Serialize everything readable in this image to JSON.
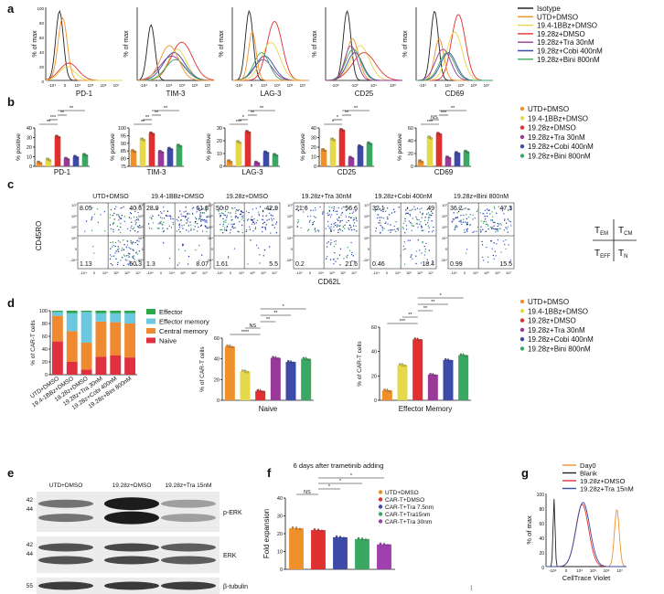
{
  "panels": {
    "a": "a",
    "b": "b",
    "c": "c",
    "d": "d",
    "e": "e",
    "f": "f",
    "g": "g"
  },
  "colors": {
    "isotype": "#222222",
    "utd": "#f0902a",
    "bb": "#e5d84a",
    "z28": "#e03030",
    "tra": "#9a3a98",
    "cobi": "#3d4aa8",
    "bini": "#3aa862"
  },
  "conditions": [
    "UTD+DMSO",
    "19.4-1BBz+DMSO",
    "19.28z+DMSO",
    "19.28z+Tra 30nM",
    "19.28z+Cobi 400nM",
    "19.28z+Bini 800nM"
  ],
  "legend_a": [
    "Isotype",
    "UTD+DMSO",
    "19.4-1BBz+DMSO",
    "19.28z+DMSO",
    "19.28z+Tra 30nM",
    "19.28z+Cobi 400nM",
    "19.28z+Bini 800nM"
  ],
  "panel_a": {
    "ylabel": "% of max",
    "yticks": [
      "100",
      "80",
      "60",
      "40",
      "20",
      "0"
    ],
    "histograms": [
      {
        "marker": "PD-1",
        "xticks": [
          "-10⁴",
          "0",
          "10⁴",
          "10⁵",
          "10⁶",
          "10⁷"
        ]
      },
      {
        "marker": "TIM-3",
        "xticks": [
          "-10⁴",
          "0",
          "10⁴",
          "10⁵",
          "10⁶",
          "10⁷"
        ]
      },
      {
        "marker": "LAG-3",
        "xticks": [
          "-10⁴",
          "0",
          "10⁴",
          "10⁵",
          "10⁶",
          "10⁷"
        ]
      },
      {
        "marker": "CD25",
        "xticks": [
          "-10⁶",
          "-10⁵",
          "10⁴",
          "10⁶"
        ]
      },
      {
        "marker": "CD69",
        "xticks": [
          "-10⁴",
          "0",
          "10⁴",
          "10⁵",
          "10⁶",
          "10⁷"
        ]
      }
    ]
  },
  "chart_data": [
    {
      "type": "bar",
      "panel": "b",
      "title": "PD-1",
      "ylabel": "% positive",
      "ylim": [
        0,
        40
      ],
      "yticks": [
        "0",
        "10",
        "20",
        "30",
        "40"
      ],
      "categories": [
        "UTD+DMSO",
        "19.4-1BBz+DMSO",
        "19.28z+DMSO",
        "19.28z+Tra 30nM",
        "19.28z+Cobi 400nM",
        "19.28z+Bini 800nM"
      ],
      "values": [
        4,
        7,
        31,
        8,
        10,
        12
      ],
      "sig": [
        [
          "**",
          0,
          2
        ],
        [
          "***",
          1,
          2
        ],
        [
          "**",
          2,
          3
        ],
        [
          "**",
          2,
          5
        ]
      ]
    },
    {
      "type": "bar",
      "panel": "b",
      "title": "TIM-3",
      "ylabel": "% positive",
      "ylim": [
        75,
        100
      ],
      "yticks": [
        "75",
        "80",
        "85",
        "90",
        "95",
        "100"
      ],
      "categories": [
        "UTD+DMSO",
        "19.4-1BBz+DMSO",
        "19.28z+DMSO",
        "19.28z+Tra 30nM",
        "19.28z+Cobi 400nM",
        "19.28z+Bini 800nM"
      ],
      "values": [
        85,
        92.5,
        96.5,
        84.5,
        86.5,
        88.5
      ],
      "sig": [
        [
          "**",
          0,
          2
        ],
        [
          "**",
          1,
          2
        ],
        [
          "**",
          2,
          3
        ],
        [
          "**",
          2,
          5
        ]
      ]
    },
    {
      "type": "bar",
      "panel": "b",
      "title": "LAG-3",
      "ylabel": "% positive",
      "ylim": [
        0,
        30
      ],
      "yticks": [
        "0",
        "10",
        "20",
        "30"
      ],
      "categories": [
        "UTD+DMSO",
        "19.4-1BBz+DMSO",
        "19.28z+DMSO",
        "19.28z+Tra 30nM",
        "19.28z+Cobi 400nM",
        "19.28z+Bini 800nM"
      ],
      "values": [
        4,
        19,
        27,
        3,
        11,
        9
      ],
      "sig": [
        [
          "***",
          0,
          2
        ],
        [
          "*",
          1,
          2
        ],
        [
          "**",
          2,
          3
        ],
        [
          "**",
          2,
          5
        ]
      ]
    },
    {
      "type": "bar",
      "panel": "b",
      "title": "CD25",
      "ylabel": "% positive",
      "ylim": [
        0,
        40
      ],
      "yticks": [
        "0",
        "10",
        "20",
        "30",
        "40"
      ],
      "categories": [
        "UTD+DMSO",
        "19.4-1BBz+DMSO",
        "19.28z+DMSO",
        "19.28z+Tra 30nM",
        "19.28z+Cobi 400nM",
        "19.28z+Bini 800nM"
      ],
      "values": [
        17,
        28,
        38,
        9,
        21,
        24
      ],
      "sig": [
        [
          "*",
          0,
          2
        ],
        [
          "*",
          1,
          2
        ],
        [
          "**",
          2,
          3
        ],
        [
          "**",
          2,
          5
        ]
      ]
    },
    {
      "type": "bar",
      "panel": "b",
      "title": "CD69",
      "ylabel": "% positive",
      "ylim": [
        0,
        60
      ],
      "yticks": [
        "0",
        "20",
        "40",
        "60"
      ],
      "categories": [
        "UTD+DMSO",
        "19.4-1BBz+DMSO",
        "19.28z+DMSO",
        "19.28z+Tra 30nM",
        "19.28z+Cobi 400nM",
        "19.28z+Bini 800nM"
      ],
      "values": [
        8,
        45,
        51,
        14,
        21,
        23
      ],
      "sig": [
        [
          "***",
          0,
          2
        ],
        [
          "NS",
          1,
          2
        ],
        [
          "***",
          2,
          3
        ],
        [
          "**",
          2,
          5
        ]
      ]
    },
    {
      "type": "stacked-bar",
      "panel": "d",
      "ylabel": "% of CAR-T cells",
      "ylim": [
        0,
        100
      ],
      "yticks": [
        "0",
        "20",
        "40",
        "60",
        "80",
        "100"
      ],
      "categories": [
        "UTD+DMSO",
        "19.4-1BBz+DMSO",
        "19.28z+DMSO",
        "19.28z+Tra 30nM",
        "19.28z+Cobi 400nM",
        "19.28z+Bini 800nM"
      ],
      "series": [
        {
          "name": "Naive",
          "values": [
            52,
            20,
            8,
            28,
            30,
            27
          ]
        },
        {
          "name": "Central memory",
          "values": [
            40,
            48,
            42,
            55,
            52,
            53
          ]
        },
        {
          "name": "Effector memory",
          "values": [
            6,
            28,
            48,
            13,
            14,
            16
          ]
        },
        {
          "name": "Effector",
          "values": [
            2,
            4,
            2,
            4,
            4,
            4
          ]
        }
      ]
    },
    {
      "type": "bar",
      "panel": "d",
      "title": "Naive",
      "ylabel": "% of CAR-T cells",
      "ylim": [
        0,
        60
      ],
      "yticks": [
        "0",
        "20",
        "40",
        "60"
      ],
      "categories": [
        "UTD+DMSO",
        "19.4-1BBz+DMSO",
        "19.28z+DMSO",
        "19.28z+Tra 30nM",
        "19.28z+Cobi 400nM",
        "19.28z+Bini 800nM"
      ],
      "values": [
        52,
        28,
        9,
        41,
        37,
        40
      ],
      "sig": [
        [
          "****",
          0,
          2
        ],
        [
          "NS",
          1,
          2
        ],
        [
          "**",
          2,
          3
        ],
        [
          "**",
          2,
          4
        ],
        [
          "*",
          2,
          5
        ]
      ]
    },
    {
      "type": "bar",
      "panel": "d",
      "title": "Effector Memory",
      "ylabel": "% of CAR-T cells",
      "ylim": [
        0,
        60
      ],
      "yticks": [
        "0",
        "20",
        "40",
        "60"
      ],
      "categories": [
        "UTD+DMSO",
        "19.4-1BBz+DMSO",
        "19.28z+DMSO",
        "19.28z+Tra 30nM",
        "19.28z+Cobi 400nM",
        "19.28z+Bini 800nM"
      ],
      "values": [
        8,
        29,
        50,
        21,
        33,
        37
      ],
      "sig": [
        [
          "***",
          0,
          2
        ],
        [
          "**",
          1,
          2
        ],
        [
          "**",
          2,
          3
        ],
        [
          "**",
          2,
          4
        ],
        [
          "*",
          2,
          5
        ]
      ]
    },
    {
      "type": "bar",
      "panel": "f",
      "title": "6 days after trametinib adding",
      "ylabel": "Fold expansion",
      "ylim": [
        0,
        40
      ],
      "yticks": [
        "0",
        "10",
        "20",
        "30",
        "40"
      ],
      "categories": [
        "UTD+DMSO",
        "CAR-T+DMSO",
        "CAR-T+Tra 7.5nm",
        "CAR-T+Tra15nm",
        "CAR-T+Tra 30nm"
      ],
      "values": [
        23,
        22,
        18,
        17,
        14
      ],
      "sig": [
        [
          "NS",
          0,
          1
        ],
        [
          "*",
          1,
          2
        ],
        [
          "*",
          1,
          3
        ],
        [
          "*",
          1,
          4
        ]
      ]
    }
  ],
  "panel_b_legend": [
    "UTD+DMSO",
    "19.4-1BBz+DMSO",
    "19.28z+DMSO",
    "19.28z+Tra 30nM",
    "19.28z+Cobi 400nM",
    "19.28z+Bini 800nM"
  ],
  "panel_c": {
    "ylabel": "CD45RO",
    "xlabel": "CD62L",
    "yticks": [
      "10⁷",
      "10⁶",
      "10⁵",
      "10⁴",
      "0",
      "-10⁴"
    ],
    "xticks": [
      "-10⁴",
      "0",
      "10⁴",
      "10⁵",
      "10⁶",
      "10⁷"
    ],
    "plots": [
      {
        "title": "UTD+DMSO",
        "q": [
          "8.05",
          "40.6",
          "1.13",
          "50.3"
        ]
      },
      {
        "title": "19.4-1BBz+DMSO",
        "q": [
          "28.9",
          "61.8",
          "1.3",
          "8.07"
        ]
      },
      {
        "title": "19.28z+DMSO",
        "q": [
          "50.0",
          "42.9",
          "1.61",
          "5.5"
        ]
      },
      {
        "title": "19.28z+Tra 30nM",
        "q": [
          "21.6",
          "56.6",
          "0.2",
          "21.6"
        ]
      },
      {
        "title": "19.28z+Cobi 400nM",
        "q": [
          "32.1",
          "49",
          "0.46",
          "18.4"
        ]
      },
      {
        "title": "19.28z+Bini 800nM",
        "q": [
          "36.2",
          "47.3",
          "0.99",
          "15.5"
        ]
      }
    ],
    "quad": {
      "em": "T",
      "em_sub": "EM",
      "cm": "T",
      "cm_sub": "CM",
      "eff": "T",
      "eff_sub": "EFF",
      "n": "T",
      "n_sub": "N"
    }
  },
  "panel_d_legend": [
    "Effector",
    "Effector memory",
    "Central memory",
    "Naive"
  ],
  "panel_d_colors": [
    "#2aa84a",
    "#6cc8e0",
    "#f08a30",
    "#e03040"
  ],
  "panel_e": {
    "lanes": [
      "UTD+DMSO",
      "19.28z+DMSO",
      "19.28z+Tra 15nM"
    ],
    "bands": [
      "p-ERK",
      "ERK",
      "β-tubulin"
    ],
    "mw": [
      "42",
      "44",
      "42",
      "44",
      "55"
    ]
  },
  "panel_f_legend": [
    "UTD+DMSO",
    "CAR-T+DMSO",
    "CAR-T+Tra 7.5nm",
    "CAR-T+Tra15nm",
    "CAR-T+Tra 30nm"
  ],
  "panel_f_colors": [
    "#f0902a",
    "#e03030",
    "#3d4aa8",
    "#3aa862",
    "#a040b0"
  ],
  "panel_g": {
    "legend": [
      "Day0",
      "Blank",
      "19.28z+DMSO",
      "19.28z+Tra 15nM"
    ],
    "colors": [
      "#f0902a",
      "#222222",
      "#e03030",
      "#3d4aa8"
    ],
    "ylabel": "% of max",
    "xlabel": "CellTrace Violet",
    "yticks": [
      "100",
      "80",
      "60",
      "40",
      "20",
      "0"
    ],
    "xticks": [
      "-10⁴",
      "0",
      "10⁴",
      "10⁵",
      "10⁶",
      "10⁷"
    ]
  },
  "stray_mark": "⁝"
}
